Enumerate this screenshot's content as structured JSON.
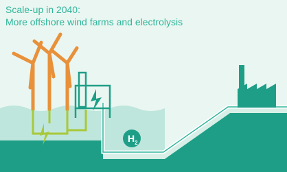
{
  "header": {
    "title_line1": "Scale-up in 2040:",
    "title_line2": "More offshore wind farms and electrolysis"
  },
  "labels": {
    "hydrogen": {
      "symbol": "H",
      "subscript": "2"
    }
  }
}
